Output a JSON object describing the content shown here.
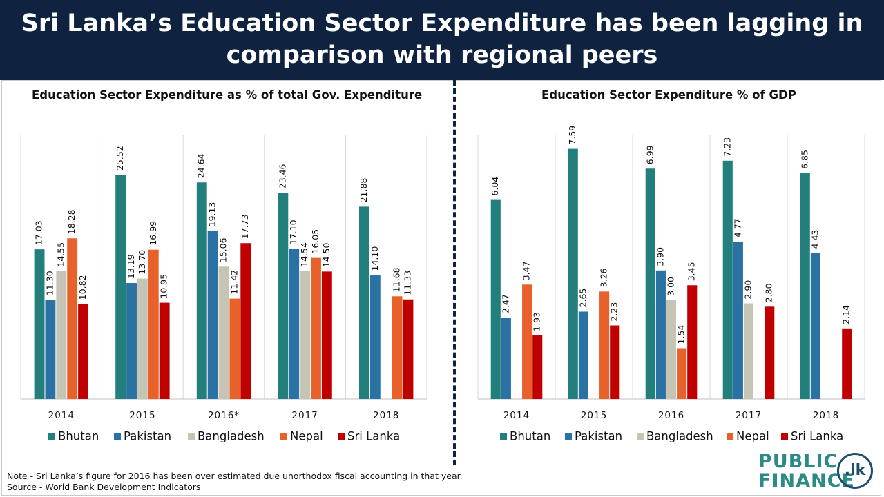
{
  "header": {
    "title_line1": "Sri Lanka’s Education Sector Expenditure has been lagging in",
    "title_line2": "comparison with regional peers"
  },
  "colors": {
    "Bhutan": "#237f7c",
    "Pakistan": "#2a72a3",
    "Bangladesh": "#c6c5b5",
    "Nepal": "#e8612a",
    "Sri Lanka": "#c00000"
  },
  "footer": {
    "note": "Note - Sri Lanka’s figure for 2016 has been over estimated due unorthodox fiscal accounting in that year.",
    "source": "Source - World Bank Development Indicators"
  },
  "logo": {
    "word1": "PUBLIC",
    "word2": "FINANCE",
    "seal": ".lk"
  },
  "chart_data": [
    {
      "type": "bar",
      "title": "Education Sector Expenditure as % of total Gov. Expenditure",
      "categories": [
        "2014",
        "2015",
        "2016*",
        "2017",
        "2018"
      ],
      "ylim": [
        0,
        30
      ],
      "legend": "bottom",
      "series": [
        {
          "name": "Bhutan",
          "values": [
            17.03,
            25.52,
            24.64,
            23.46,
            21.88
          ],
          "labels": [
            "17.03",
            "25.52",
            "24.64",
            "23.46",
            "21.88"
          ]
        },
        {
          "name": "Pakistan",
          "values": [
            11.3,
            13.19,
            19.13,
            17.1,
            14.1
          ],
          "labels": [
            "11.30",
            "13.19",
            "19.13",
            "17.10",
            "14.10"
          ]
        },
        {
          "name": "Bangladesh",
          "values": [
            14.55,
            13.7,
            15.06,
            14.54,
            null
          ],
          "labels": [
            "14.55",
            "13.70",
            "15.06",
            "14.54",
            null
          ]
        },
        {
          "name": "Nepal",
          "values": [
            18.28,
            16.99,
            11.42,
            16.05,
            11.68
          ],
          "labels": [
            "18.28",
            "16.99",
            "11.42",
            "16.05",
            "11.68"
          ]
        },
        {
          "name": "Sri Lanka",
          "values": [
            10.82,
            10.95,
            17.73,
            14.5,
            11.33
          ],
          "labels": [
            "10.82",
            "10.95",
            "17.73",
            "14.50",
            "11.33"
          ]
        }
      ]
    },
    {
      "type": "bar",
      "title": "Education Sector Expenditure % of GDP",
      "categories": [
        "2014",
        "2015",
        "2016",
        "2017",
        "2018"
      ],
      "ylim": [
        0,
        8
      ],
      "legend": "bottom",
      "series": [
        {
          "name": "Bhutan",
          "values": [
            6.04,
            7.59,
            6.99,
            7.23,
            6.85
          ],
          "labels": [
            "6.04",
            "7.59",
            "6.99",
            "7.23",
            "6.85"
          ]
        },
        {
          "name": "Pakistan",
          "values": [
            2.47,
            2.65,
            3.9,
            4.77,
            4.43
          ],
          "labels": [
            "2.47",
            "2.65",
            "3.90",
            "4.77",
            "4.43"
          ]
        },
        {
          "name": "Bangladesh",
          "values": [
            null,
            null,
            3.0,
            2.9,
            null
          ],
          "labels": [
            null,
            null,
            "3.00",
            "2.90",
            null
          ]
        },
        {
          "name": "Nepal",
          "values": [
            3.47,
            3.26,
            1.54,
            null,
            null
          ],
          "labels": [
            "3.47",
            "3.26",
            "1.54",
            null,
            null
          ]
        },
        {
          "name": "Sri Lanka",
          "values": [
            1.93,
            2.23,
            3.45,
            2.8,
            2.14
          ],
          "labels": [
            "1.93",
            "2.23",
            "3.45",
            "2.80",
            "2.14"
          ]
        }
      ]
    }
  ]
}
